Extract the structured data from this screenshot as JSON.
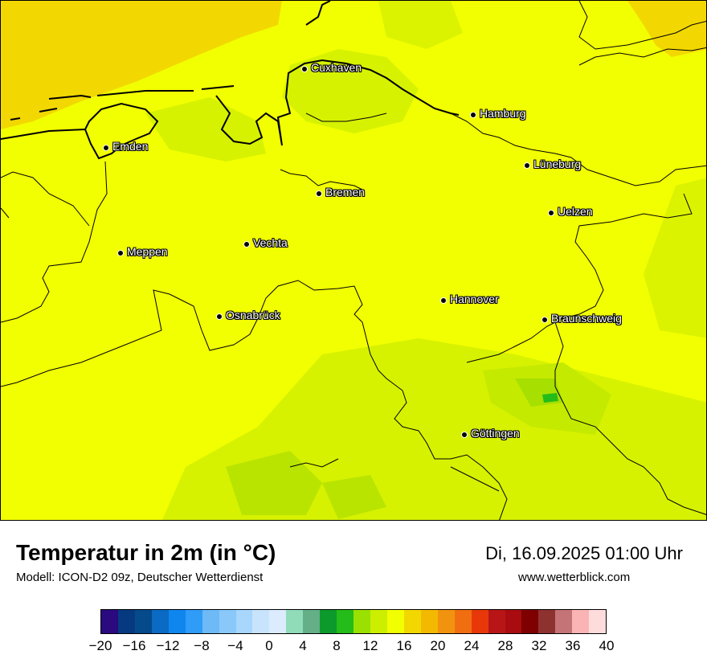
{
  "map": {
    "background_color": "#f2ff00",
    "cities": [
      {
        "name": "Cuxhaven"
      },
      {
        "name": "Hamburg"
      },
      {
        "name": "Emden"
      },
      {
        "name": "Lüneburg"
      },
      {
        "name": "Bremen"
      },
      {
        "name": "Uelzen"
      },
      {
        "name": "Meppen"
      },
      {
        "name": "Vechta"
      },
      {
        "name": "Hannover"
      },
      {
        "name": "Osnabrück"
      },
      {
        "name": "Braunschweig"
      },
      {
        "name": "Göttingen"
      }
    ]
  },
  "footer": {
    "title": "Temperatur in 2m (in °C)",
    "model": "Modell: ICON-D2 09z, Deutscher Wetterdienst",
    "datetime": "Di, 16.09.2025 01:00 Uhr",
    "website": "www.wetterblick.com"
  },
  "legend": {
    "colors": [
      "#2a0a7e",
      "#053a80",
      "#054a8a",
      "#0a6ac4",
      "#0f86ee",
      "#2f9cf7",
      "#6ebaf7",
      "#8ac8fa",
      "#a8d6fc",
      "#c8e4fd",
      "#dcecfe",
      "#90dcb8",
      "#64ae88",
      "#0c9a2c",
      "#24bc18",
      "#9ae000",
      "#ccef00",
      "#f2ff00",
      "#f2d800",
      "#f2b900",
      "#f2930f",
      "#f06e10",
      "#e8380a",
      "#b81616",
      "#a80c10",
      "#7e0000",
      "#8e3230",
      "#c47476",
      "#fbb4b4",
      "#ffdcdc"
    ],
    "tick_labels": [
      "−20",
      "−16",
      "−12",
      "−8",
      "−4",
      "0",
      "4",
      "8",
      "12",
      "16",
      "20",
      "24",
      "28",
      "32",
      "36",
      "40"
    ]
  }
}
